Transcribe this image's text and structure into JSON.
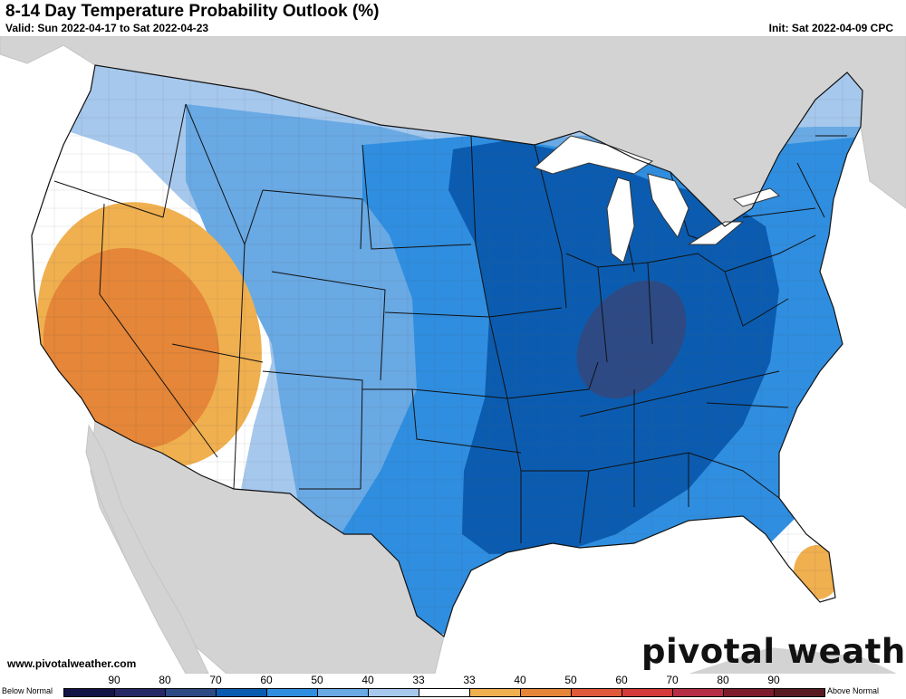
{
  "header": {
    "title": "8-14 Day Temperature Probability Outlook (%)",
    "valid": "Valid: Sun 2022-04-17 to Sat 2022-04-23",
    "init": "Init: Sat 2022-04-09 CPC"
  },
  "footer": {
    "website": "www.pivotalweather.com",
    "logo": "pivotal weather"
  },
  "legend": {
    "below_label": "Below Normal",
    "above_label": "Above Normal",
    "ticks": [
      "90",
      "80",
      "70",
      "60",
      "50",
      "40",
      "33",
      "33",
      "40",
      "50",
      "60",
      "70",
      "80",
      "90"
    ],
    "colors": [
      "#141447",
      "#262766",
      "#2d4a85",
      "#0b5cb0",
      "#2f8ee0",
      "#69a9e4",
      "#a6c8ec",
      "#ffffff",
      "#f0b04f",
      "#e58638",
      "#e0593a",
      "#d43a3a",
      "#b52e46",
      "#7d1c2c",
      "#5a1a22"
    ]
  },
  "map_colors": {
    "land": "#d3d3d3",
    "water": "#ffffff",
    "below_33": "#a6c8ec",
    "below_40": "#69a9e4",
    "below_50": "#2f8ee0",
    "below_60": "#0b5cb0",
    "below_70": "#2d4a85",
    "above_33": "#f0b04f",
    "above_40": "#e58638"
  }
}
